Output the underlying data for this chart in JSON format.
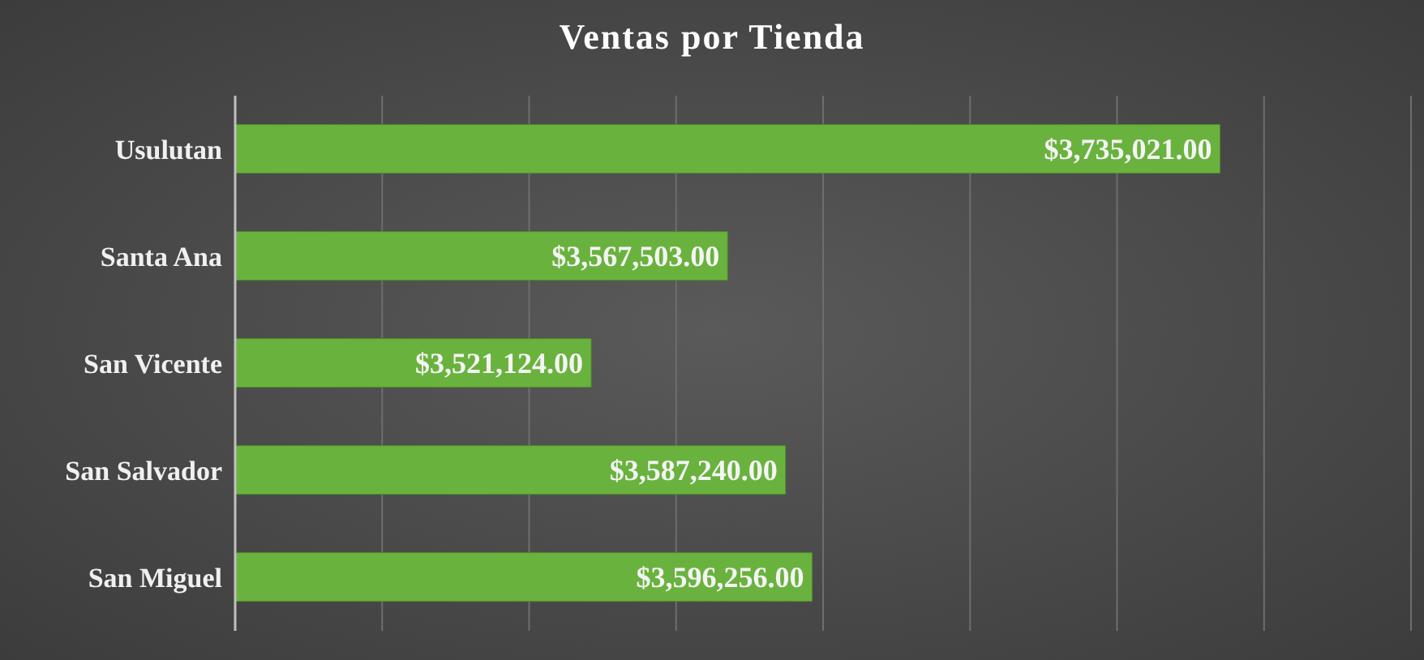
{
  "chart_data": {
    "type": "bar",
    "orientation": "horizontal",
    "title": "Ventas por Tienda",
    "categories": [
      "Usulutan",
      "Santa Ana",
      "San Vicente",
      "San Salvador",
      "San Miguel"
    ],
    "values": [
      3735021,
      3567503,
      3521124,
      3587240,
      3596256
    ],
    "value_labels": [
      "$3,735,021.00",
      "$3,567,503.00",
      "$3,521,124.00",
      "$3,587,240.00",
      "$3,596,256.00"
    ],
    "color": "#6ab23e",
    "xlim": [
      3400000,
      3800000
    ],
    "grid": "x",
    "tick_labels": "y",
    "legend": false
  }
}
